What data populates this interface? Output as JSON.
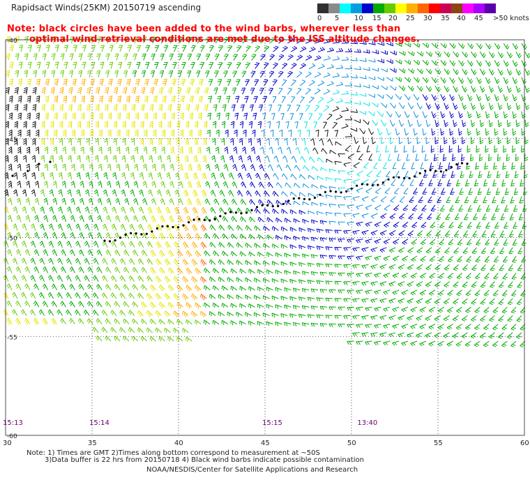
{
  "title": "Rapidsact Winds(25KM) 20150719 ascending",
  "note_line1": "Note: black circles have been added to the wind barbs, wherever less than",
  "note_line2": "optimal wind retrieval conditions are met due to the ISS altitude changes.",
  "legend": {
    "labels": [
      "0",
      "5",
      "10",
      "15",
      "20",
      "25",
      "30",
      "35",
      "40",
      "45",
      ">50 knots"
    ],
    "colors": [
      "#303030",
      "#8a8a8a",
      "#00ffff",
      "#00a0e0",
      "#0000cc",
      "#00aa00",
      "#66cc00",
      "#ffff00",
      "#ffb000",
      "#ff6600",
      "#ff0000",
      "#cc0055",
      "#8b4513",
      "#ff00ff",
      "#aa00ff",
      "#5a00aa"
    ]
  },
  "map": {
    "lon_range": [
      30,
      60
    ],
    "lat_range": [
      -60,
      -40
    ],
    "lon_ticks": [
      "30",
      "35",
      "40",
      "45",
      "50",
      "55",
      "60"
    ],
    "lat_ticks": [
      "-40",
      "-45",
      "-50",
      "-55",
      "-60"
    ],
    "grid": "dotted"
  },
  "pass_times": [
    {
      "lon": 30,
      "label": "15:13"
    },
    {
      "lon": 35,
      "label": "15:14"
    },
    {
      "lon": 45,
      "label": "15:15"
    },
    {
      "lon": 50.5,
      "label": "13:40"
    }
  ],
  "footnote_line1": "Note: 1) Times are GMT 2)Times along bottom correspond to measurement at ~50S",
  "footnote_line2": "3)Data buffer is 22 hrs from 20150718 4) Black wind barbs indicate possible contamination",
  "credit": "NOAA/NESDIS/Center for Satellite Applications and Research"
}
